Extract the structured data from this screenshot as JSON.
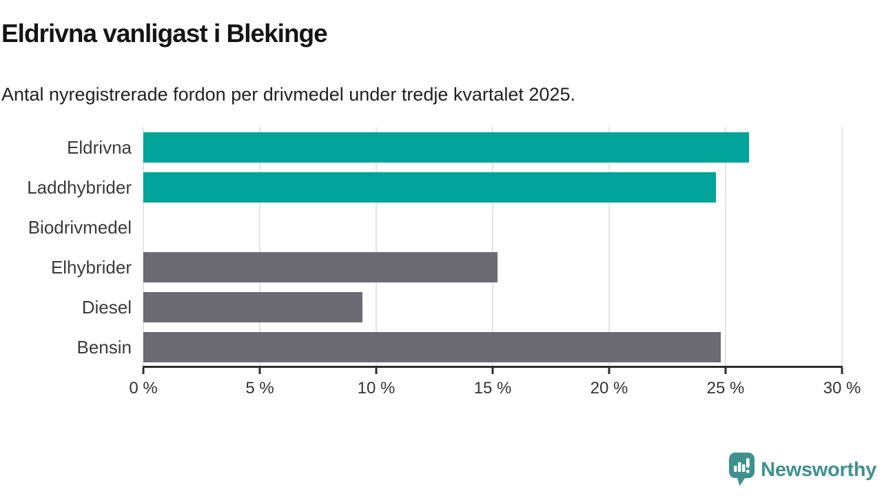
{
  "title": "Eldrivna vanligast i Blekinge",
  "subtitle": "Antal nyregistrerade fordon per drivmedel under tredje kvartalet 2025.",
  "chart_data": {
    "type": "bar",
    "orientation": "horizontal",
    "categories": [
      "Eldrivna",
      "Laddhybrider",
      "Biodrivmedel",
      "Elhybrider",
      "Diesel",
      "Bensin"
    ],
    "values": [
      26.0,
      24.6,
      0,
      15.2,
      9.4,
      24.8
    ],
    "unit": "%",
    "bar_colors": [
      "#00a49a",
      "#00a49a",
      "#6c6a72",
      "#6c6a72",
      "#6c6a72",
      "#6c6a72"
    ],
    "xlim": [
      0,
      30
    ],
    "x_tick_values": [
      0,
      5,
      10,
      15,
      20,
      25,
      30
    ],
    "x_tick_labels": [
      "0 %",
      "5 %",
      "10 %",
      "15 %",
      "20 %",
      "25 %",
      "30 %"
    ],
    "grid": "vertical",
    "legend": "none",
    "highlight_color": "#00a49a",
    "default_color": "#6c6a72"
  },
  "colors": {
    "background": "#ffffff",
    "accent_teal": "#00a49a",
    "bar_gray": "#6c6a72",
    "gridline": "#e4e4e4",
    "axis": "#2d2d2d",
    "text": "#212121",
    "logo_teal": "#3e918d"
  },
  "branding": {
    "logo_text": "Newsworthy",
    "logo_icon": "bar-chart-speech-bubble-icon"
  }
}
